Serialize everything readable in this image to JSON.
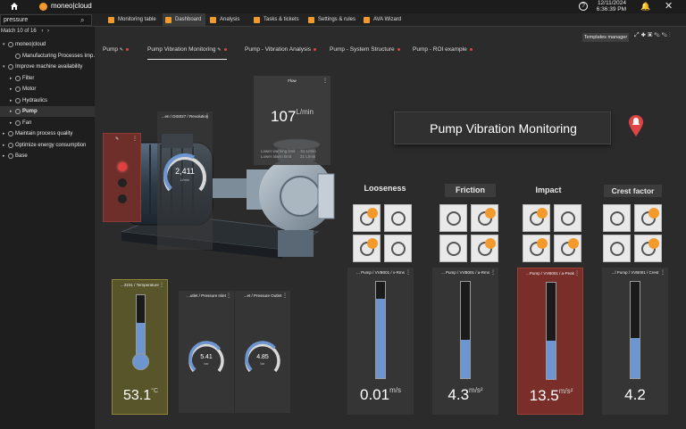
{
  "topbar": {
    "brand": "moneo|cloud",
    "date": "12/11/2024",
    "time": "6:36:39 PM",
    "colors": {
      "brand_accent": "#f39a2c",
      "background": "#1c1c1c"
    }
  },
  "search": {
    "value": "pressure",
    "match_label": "Match 10 of 16"
  },
  "nav_tabs": [
    {
      "label": "Monitoring table",
      "icon": "table-icon"
    },
    {
      "label": "Dashboard",
      "icon": "dashboard-icon"
    },
    {
      "label": "Analysis",
      "icon": "analysis-icon"
    },
    {
      "label": "Tasks & tickets",
      "icon": "tasks-icon"
    },
    {
      "label": "Settings & rules",
      "icon": "settings-icon"
    },
    {
      "label": "AVA Wizard",
      "icon": "wizard-icon"
    }
  ],
  "tree": [
    {
      "label": "moneo|cloud",
      "level": 0,
      "arrow": "▾"
    },
    {
      "label": "Manufacturing Processes Imp...",
      "level": 1,
      "arrow": ""
    },
    {
      "label": "Improve machine availability",
      "level": 0,
      "arrow": "▾"
    },
    {
      "label": "Filter",
      "level": 1,
      "arrow": "▸"
    },
    {
      "label": "Motor",
      "level": 1,
      "arrow": "▸"
    },
    {
      "label": "Hydraulics",
      "level": 1,
      "arrow": "▸"
    },
    {
      "label": "Pump",
      "level": 1,
      "arrow": "▸",
      "selected": true
    },
    {
      "label": "Fan",
      "level": 1,
      "arrow": "▸"
    },
    {
      "label": "Maintain process quality",
      "level": 0,
      "arrow": "▸"
    },
    {
      "label": "Optimize energy consumption",
      "level": 0,
      "arrow": "▸"
    },
    {
      "label": "Base",
      "level": 0,
      "arrow": "▸"
    }
  ],
  "toolbar": {
    "templates_manager": "Templates manager"
  },
  "dashboard_tabs": [
    {
      "label": "Pump",
      "edit": true,
      "dot": true
    },
    {
      "label": "Pump Vibration Monitoring",
      "edit": true,
      "dot": true,
      "active": true
    },
    {
      "label": "Pump - Vibration Analysis",
      "dot": true
    },
    {
      "label": "Pump - System Structure",
      "dot": true
    },
    {
      "label": "Pump - ROI example",
      "dot": true
    }
  ],
  "main_title": "Pump Vibration Monitoring",
  "revolution": {
    "title": "...en / DIS027 / Revolution",
    "value": "2,411",
    "unit": "U/min",
    "fraction": 0.6
  },
  "flow": {
    "title": "Flow",
    "value": "107",
    "unit": "L/min",
    "warning_label": "Lower warning limit",
    "warning_value": "51 L/min",
    "alarm_label": "Lower alarm limit",
    "alarm_value": "21 L/min"
  },
  "temperature": {
    "title": "...3231 / Temperature",
    "value": "53.1",
    "unit": "°C",
    "fraction": 0.55
  },
  "pressure_inlet": {
    "title": "...utlet / Pressure Inlet",
    "value": "5.41",
    "unit": "bar",
    "fraction": 0.7
  },
  "pressure_outlet": {
    "title": "...et / Pressure Outlet",
    "value": "4.85",
    "unit": "bar",
    "fraction": 0.68
  },
  "categories": [
    {
      "label": "Looseness",
      "style": "plain"
    },
    {
      "label": "Friction",
      "style": "boxed"
    },
    {
      "label": "Impact",
      "style": "plain"
    },
    {
      "label": "Crest factor",
      "style": "boxed"
    }
  ],
  "vibration": [
    {
      "title": "... Pump / VVB001 / v-Rms",
      "value": "0.01",
      "unit": "m/s",
      "fraction": 0.82,
      "alarm": false
    },
    {
      "title": "... Pump / VVB001 / a-Rms",
      "value": "4.3",
      "unit": "m/s²",
      "fraction": 0.4,
      "alarm": false
    },
    {
      "title": "...Pump / VVB001 / a-Peak",
      "value": "13.5",
      "unit": "m/s²",
      "fraction": 0.4,
      "alarm": true
    },
    {
      "title": "...l Pump / VVB001 / Crest",
      "value": "4.2",
      "unit": "",
      "fraction": 0.42,
      "alarm": false
    }
  ],
  "colors": {
    "fill_blue": "#6d95cf",
    "alarm_red": "#7a2e2a",
    "warning_olive": "#5a5526",
    "alert_red": "#e04545"
  }
}
